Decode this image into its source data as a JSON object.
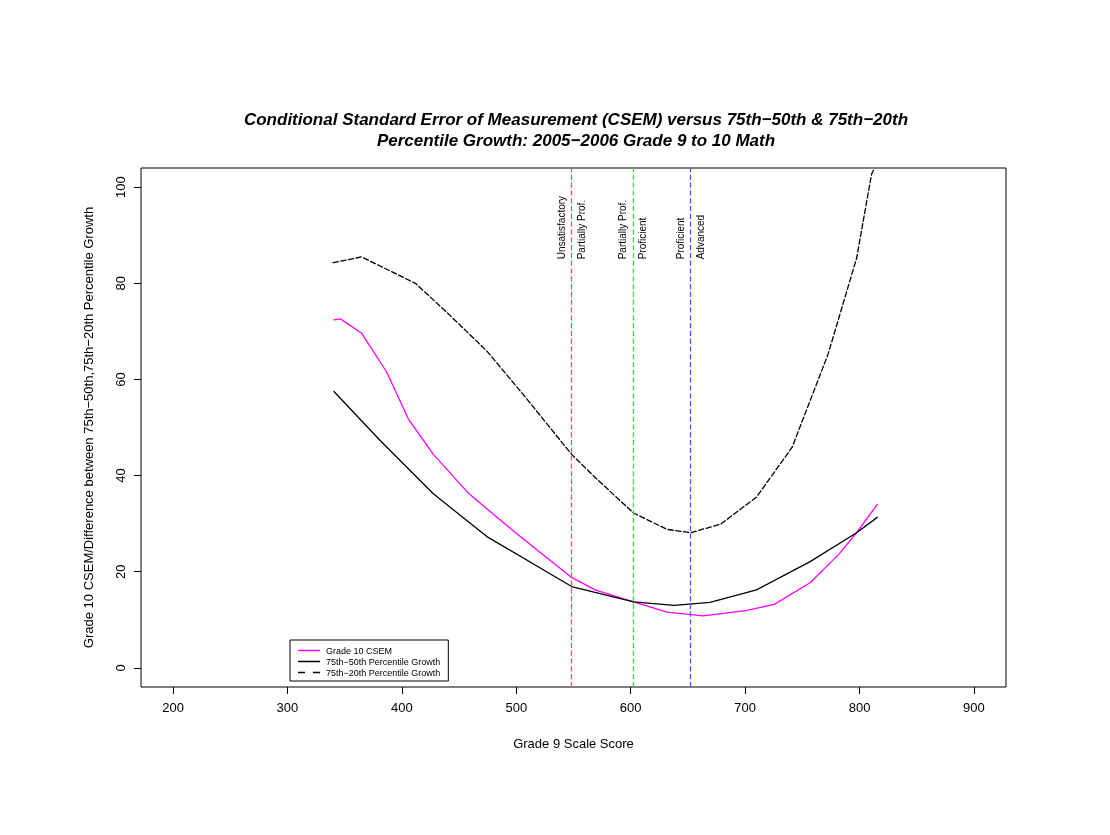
{
  "chart_data": {
    "type": "line",
    "title": "Conditional Standard Error of Measurement (CSEM) versus 75th−50th & 75th−20th\nPercentile Growth: 2005−2006 Grade 9 to 10 Math",
    "xlabel": "Grade 9 Scale Score",
    "ylabel": "Grade 10 CSEM/Difference between 75th−50th,75th−20th Percentile Growth",
    "xlim": [
      172,
      928
    ],
    "xticks": [
      200,
      300,
      400,
      500,
      600,
      700,
      800,
      900
    ],
    "ylim": [
      -4,
      104
    ],
    "yticks": [
      0,
      20,
      40,
      60,
      80,
      100
    ],
    "grid": false,
    "legend": "bottom left",
    "marker": "none",
    "series": [
      {
        "name": "Grade 10 CSEM",
        "color": "#ff00ff",
        "line_style": "solid",
        "x": [
          340.6,
          346.2,
          364.9,
          386.8,
          405.6,
          427.5,
          458.7,
          499.3,
          548.4,
          568.9,
          602.5,
          631.8,
          663.1,
          700.5,
          725.5,
          756.8,
          781.8,
          797.4,
          815.5
        ],
        "values": [
          72.4,
          72.6,
          69.6,
          61.5,
          51.8,
          44.4,
          36.2,
          28.1,
          18.8,
          16.2,
          13.7,
          11.6,
          10.8,
          11.9,
          13.2,
          17.7,
          23.6,
          28.1,
          34.0
        ]
      },
      {
        "name": "75th−50th Percentile Growth",
        "color": "#000000",
        "line_style": "solid",
        "x": [
          340.6,
          380.6,
          427.5,
          474.3,
          548.4,
          602.5,
          638.1,
          669.3,
          709.9,
          756.8,
          797.4,
          815.5
        ],
        "values": [
          57.5,
          47.4,
          36.2,
          27.3,
          16.9,
          13.7,
          13.0,
          13.6,
          16.2,
          22.1,
          28.1,
          31.3
        ]
      },
      {
        "name": "75th−20th Percentile Growth",
        "color": "#000000",
        "line_style": "dashed",
        "x": [
          340,
          364.8,
          411.8,
          438.7,
          474.3,
          505.6,
          548.4,
          568.9,
          602.5,
          631.8,
          652.4,
          678.7,
          709.9,
          741.1,
          772.4,
          797.4,
          810.5,
          813
        ],
        "values": [
          84.3,
          85.5,
          80.0,
          74.1,
          65.9,
          57.0,
          44.4,
          39.6,
          32.2,
          28.8,
          28.1,
          29.9,
          35.5,
          45.9,
          65.2,
          85.2,
          102.7,
          104
        ]
      }
    ],
    "ref_lines": [
      {
        "axis": "x",
        "value": 548,
        "color": "#ff5555",
        "line_style": "dashed"
      },
      {
        "axis": "x",
        "value": 602,
        "color": "#44dd44",
        "line_style": "dashed"
      },
      {
        "axis": "x",
        "value": 652,
        "color": "#5555ff",
        "line_style": "dashed"
      }
    ],
    "annotations": [
      {
        "text": "Unsatisfactory",
        "x": 548,
        "y": 85
      },
      {
        "text": "Partially Prof.",
        "x": 548,
        "y": 85
      },
      {
        "text": "Partially Prof.",
        "x": 602,
        "y": 85
      },
      {
        "text": "Proficient",
        "x": 602,
        "y": 85
      },
      {
        "text": "Proficient",
        "x": 652,
        "y": 85
      },
      {
        "text": "Advanced",
        "x": 652,
        "y": 85
      }
    ]
  }
}
